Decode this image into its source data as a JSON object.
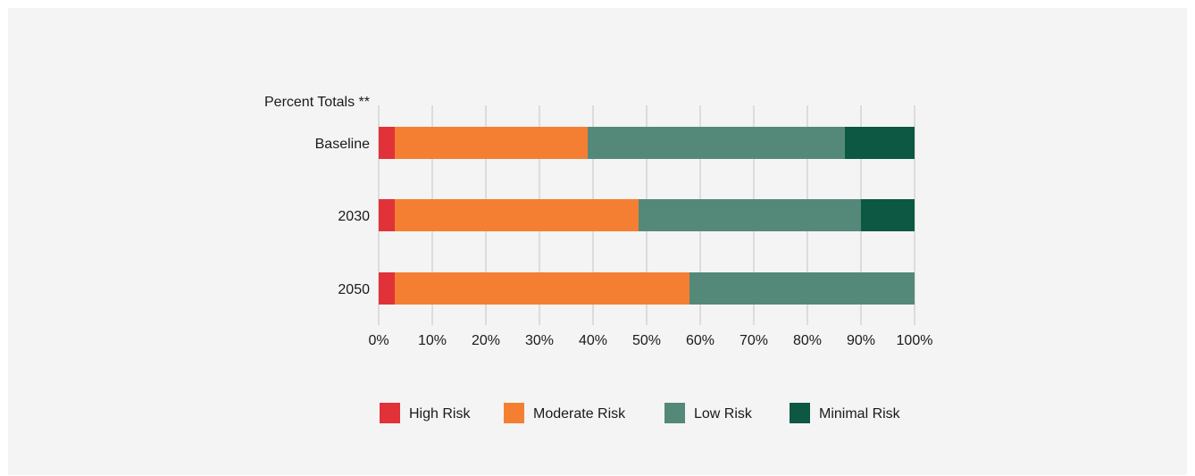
{
  "chart_data": {
    "type": "bar",
    "orientation": "horizontal",
    "stacked": true,
    "title": "Percent Totals **",
    "categories": [
      "Baseline",
      "2030",
      "2050"
    ],
    "series": [
      {
        "name": "High Risk",
        "values": [
          3,
          3,
          3
        ],
        "color": "#e03238"
      },
      {
        "name": "Moderate Risk",
        "values": [
          36,
          45.5,
          55
        ],
        "color": "#f47f32"
      },
      {
        "name": "Low Risk",
        "values": [
          48,
          41.5,
          42
        ],
        "color": "#54897a"
      },
      {
        "name": "Minimal Risk",
        "values": [
          13,
          10,
          0
        ],
        "color": "#0c5842"
      }
    ],
    "xlim": [
      0,
      100
    ],
    "xticks": [
      "0%",
      "10%",
      "20%",
      "30%",
      "40%",
      "50%",
      "60%",
      "70%",
      "80%",
      "90%",
      "100%"
    ],
    "grid": true,
    "legend_position": "bottom"
  }
}
